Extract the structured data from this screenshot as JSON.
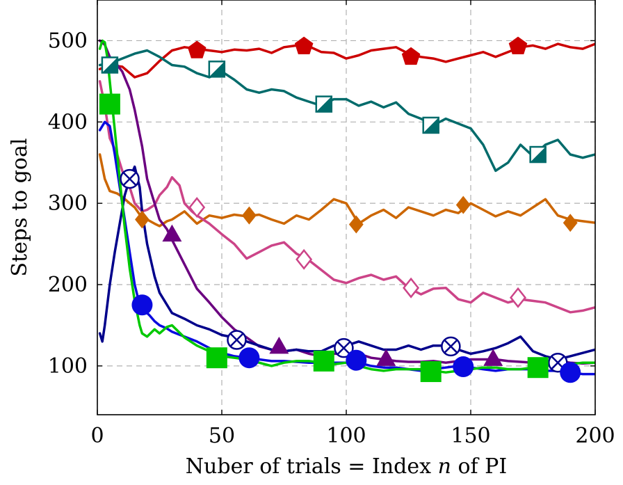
{
  "chart_data": {
    "type": "line",
    "title": "",
    "xlabel": "Nuber of trials = Index n of PI",
    "ylabel": "Steps to goal",
    "xlim": [
      0,
      200
    ],
    "ylim": [
      40,
      550
    ],
    "x_ticks": [
      0,
      50,
      100,
      150,
      200
    ],
    "y_ticks": [
      100,
      200,
      300,
      400,
      500
    ],
    "grid": true,
    "legend": "none",
    "series": [
      {
        "color": "#cc0000",
        "marker": "pentagon",
        "marker_fill": "#cc0000",
        "x": [
          1,
          5,
          10,
          15,
          20,
          25,
          30,
          35,
          40,
          45,
          50,
          55,
          60,
          65,
          70,
          75,
          80,
          85,
          90,
          95,
          100,
          105,
          110,
          115,
          120,
          125,
          130,
          135,
          140,
          145,
          150,
          155,
          160,
          165,
          170,
          175,
          180,
          185,
          190,
          195,
          200
        ],
        "y": [
          465,
          470,
          468,
          455,
          460,
          475,
          488,
          492,
          490,
          488,
          486,
          489,
          488,
          490,
          485,
          492,
          494,
          493,
          486,
          485,
          478,
          482,
          488,
          490,
          492,
          484,
          480,
          478,
          474,
          478,
          482,
          486,
          480,
          486,
          492,
          494,
          490,
          496,
          492,
          490,
          496
        ],
        "markers_x": [
          40,
          83,
          126,
          169
        ],
        "markers_y": [
          488,
          493,
          480,
          493
        ]
      },
      {
        "color": "#006b6b",
        "marker": "half-square",
        "marker_fill": "#006b6b",
        "x": [
          1,
          5,
          10,
          15,
          20,
          25,
          30,
          35,
          40,
          45,
          50,
          55,
          60,
          65,
          70,
          75,
          80,
          85,
          90,
          95,
          100,
          105,
          110,
          115,
          120,
          125,
          130,
          135,
          140,
          145,
          150,
          155,
          160,
          165,
          170,
          175,
          180,
          185,
          190,
          195,
          200
        ],
        "y": [
          470,
          472,
          478,
          484,
          488,
          480,
          470,
          468,
          460,
          455,
          462,
          452,
          440,
          436,
          440,
          438,
          430,
          425,
          420,
          428,
          428,
          420,
          425,
          418,
          424,
          410,
          404,
          396,
          404,
          398,
          392,
          372,
          340,
          350,
          372,
          358,
          372,
          378,
          360,
          356,
          360
        ],
        "markers_x": [
          5,
          48,
          91,
          134,
          177
        ],
        "markers_y": [
          470,
          465,
          422,
          396,
          360
        ]
      },
      {
        "color": "#cc6600",
        "marker": "diamond",
        "marker_fill": "#cc6600",
        "x": [
          1,
          3,
          5,
          8,
          10,
          13,
          15,
          18,
          20,
          23,
          25,
          28,
          30,
          35,
          40,
          45,
          50,
          55,
          60,
          65,
          70,
          75,
          80,
          85,
          90,
          95,
          100,
          105,
          110,
          115,
          120,
          125,
          130,
          135,
          140,
          145,
          150,
          155,
          160,
          165,
          170,
          175,
          180,
          185,
          190,
          195,
          200
        ],
        "y": [
          360,
          330,
          315,
          312,
          308,
          300,
          295,
          282,
          280,
          275,
          272,
          278,
          280,
          290,
          275,
          285,
          282,
          286,
          284,
          286,
          280,
          275,
          285,
          280,
          292,
          305,
          300,
          275,
          285,
          292,
          282,
          295,
          290,
          285,
          292,
          288,
          300,
          292,
          284,
          290,
          285,
          295,
          305,
          285,
          280,
          278,
          276
        ],
        "markers_x": [
          18,
          61,
          104,
          147,
          190
        ],
        "markers_y": [
          280,
          285,
          274,
          298,
          276
        ]
      },
      {
        "color": "#cc4488",
        "marker": "diamond-open",
        "marker_fill": "#ffffff",
        "x": [
          1,
          3,
          5,
          8,
          10,
          13,
          15,
          18,
          20,
          23,
          25,
          28,
          30,
          33,
          35,
          38,
          40,
          45,
          50,
          55,
          60,
          65,
          70,
          75,
          80,
          85,
          90,
          95,
          100,
          105,
          110,
          115,
          120,
          125,
          130,
          135,
          140,
          145,
          150,
          155,
          160,
          165,
          170,
          175,
          180,
          185,
          190,
          195,
          200
        ],
        "y": [
          450,
          420,
          380,
          360,
          340,
          320,
          300,
          290,
          292,
          298,
          310,
          320,
          332,
          322,
          300,
          290,
          285,
          275,
          262,
          250,
          232,
          240,
          248,
          252,
          238,
          230,
          218,
          206,
          202,
          208,
          212,
          206,
          210,
          196,
          188,
          195,
          196,
          182,
          178,
          190,
          184,
          178,
          182,
          180,
          178,
          172,
          166,
          168,
          172
        ],
        "markers_x": [
          40,
          83,
          126,
          169
        ],
        "markers_y": [
          295,
          231,
          196,
          184
        ]
      },
      {
        "color": "#6b0080",
        "marker": "triangle",
        "marker_fill": "#6b0080",
        "x": [
          1,
          3,
          5,
          8,
          10,
          13,
          15,
          18,
          20,
          23,
          25,
          28,
          30,
          35,
          40,
          45,
          50,
          55,
          60,
          65,
          70,
          75,
          80,
          85,
          90,
          95,
          100,
          105,
          110,
          115,
          120,
          125,
          130,
          135,
          140,
          145,
          150,
          155,
          160,
          165,
          170,
          175,
          180,
          185,
          190,
          195,
          200
        ],
        "y": [
          500,
          495,
          480,
          470,
          462,
          440,
          415,
          370,
          330,
          300,
          280,
          268,
          255,
          225,
          195,
          178,
          160,
          145,
          135,
          124,
          120,
          118,
          120,
          115,
          112,
          115,
          115,
          115,
          110,
          108,
          106,
          105,
          105,
          106,
          104,
          106,
          108,
          108,
          108,
          106,
          105,
          104,
          104,
          106,
          104,
          103,
          104
        ],
        "markers_x": [
          30,
          73,
          116,
          159
        ],
        "markers_y": [
          262,
          124,
          109,
          109
        ]
      },
      {
        "color": "#00008b",
        "marker": "otimes",
        "marker_fill": "#ffffff",
        "x": [
          1,
          2,
          3,
          5,
          7,
          9,
          11,
          13,
          15,
          17,
          18,
          20,
          23,
          25,
          28,
          30,
          35,
          40,
          45,
          50,
          55,
          60,
          65,
          70,
          75,
          80,
          85,
          90,
          95,
          100,
          105,
          110,
          115,
          120,
          125,
          130,
          135,
          140,
          145,
          150,
          155,
          160,
          165,
          170,
          175,
          180,
          185,
          190,
          195,
          200
        ],
        "y": [
          140,
          130,
          150,
          200,
          240,
          275,
          310,
          330,
          345,
          320,
          290,
          250,
          210,
          190,
          175,
          165,
          158,
          150,
          145,
          138,
          135,
          130,
          125,
          120,
          118,
          120,
          118,
          118,
          125,
          125,
          130,
          125,
          120,
          120,
          125,
          120,
          125,
          125,
          120,
          115,
          118,
          122,
          128,
          136,
          118,
          112,
          108,
          112,
          116,
          120
        ],
        "markers_x": [
          13,
          56,
          99,
          142,
          185
        ],
        "markers_y": [
          330,
          132,
          122,
          124,
          104
        ]
      },
      {
        "color": "#0a0adf",
        "marker": "circle",
        "marker_fill": "#0a0adf",
        "x": [
          1,
          3,
          5,
          7,
          9,
          11,
          13,
          15,
          17,
          19,
          21,
          23,
          25,
          28,
          30,
          35,
          40,
          45,
          50,
          55,
          60,
          65,
          70,
          75,
          80,
          85,
          90,
          95,
          100,
          105,
          110,
          115,
          120,
          125,
          130,
          135,
          140,
          145,
          150,
          155,
          160,
          165,
          170,
          175,
          180,
          185,
          190,
          195,
          200
        ],
        "y": [
          390,
          400,
          395,
          360,
          320,
          280,
          240,
          200,
          175,
          168,
          162,
          155,
          150,
          146,
          142,
          136,
          130,
          122,
          116,
          112,
          110,
          108,
          106,
          106,
          105,
          104,
          104,
          104,
          104,
          104,
          100,
          98,
          98,
          96,
          94,
          96,
          98,
          100,
          98,
          96,
          94,
          96,
          96,
          96,
          94,
          94,
          92,
          90,
          90
        ],
        "markers_x": [
          18,
          61,
          104,
          147,
          190
        ],
        "markers_y": [
          175,
          110,
          107,
          99,
          92
        ]
      },
      {
        "color": "#00c800",
        "marker": "square",
        "marker_fill": "#00c800",
        "x": [
          1,
          2,
          3,
          4,
          5,
          6,
          7,
          8,
          9,
          10,
          11,
          12,
          13,
          14,
          15,
          16,
          17,
          18,
          20,
          23,
          25,
          28,
          30,
          35,
          40,
          45,
          50,
          55,
          60,
          65,
          70,
          75,
          80,
          85,
          90,
          95,
          100,
          105,
          110,
          115,
          120,
          125,
          130,
          135,
          140,
          145,
          150,
          155,
          160,
          165,
          170,
          175,
          180,
          185,
          190,
          195,
          200
        ],
        "y": [
          490,
          500,
          498,
          480,
          450,
          420,
          390,
          360,
          330,
          300,
          270,
          245,
          220,
          200,
          180,
          165,
          150,
          140,
          136,
          145,
          140,
          148,
          150,
          135,
          125,
          118,
          112,
          110,
          108,
          104,
          100,
          104,
          106,
          106,
          104,
          102,
          104,
          100,
          96,
          94,
          96,
          96,
          96,
          94,
          92,
          94,
          96,
          98,
          98,
          96,
          96,
          98,
          100,
          102,
          102,
          104,
          104
        ],
        "markers_x": [
          5,
          48,
          91,
          134,
          177
        ],
        "markers_y": [
          422,
          110,
          106,
          93,
          98
        ]
      }
    ]
  }
}
